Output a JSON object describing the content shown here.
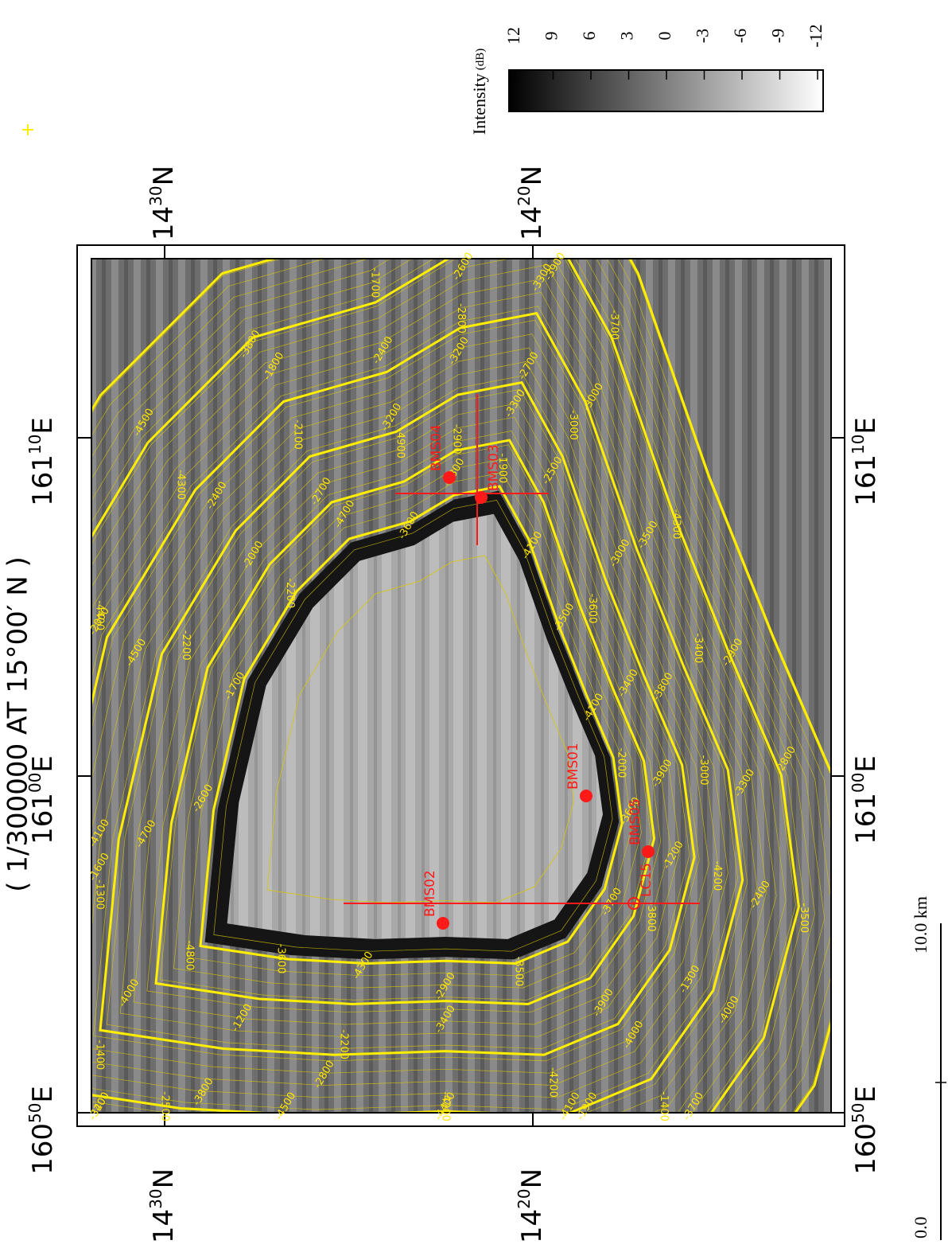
{
  "title": "( 1/300000 AT 15°00′ N )",
  "lon_labels": [
    {
      "deg": "160",
      "min": "50E"
    },
    {
      "deg": "161",
      "min": "00E"
    },
    {
      "deg": "161",
      "min": "10E"
    }
  ],
  "lat_labels": [
    {
      "deg": "14",
      "min": "30N"
    },
    {
      "deg": "14",
      "min": "20N"
    }
  ],
  "colorbar": {
    "label": "Intensity",
    "unit": "(dB)",
    "range": [
      12,
      -12
    ],
    "ticks": [
      12,
      9,
      6,
      3,
      0,
      -3,
      -6,
      -9,
      -12
    ]
  },
  "scale_bar": {
    "start": "0.0",
    "end": "10.0 km"
  },
  "stations": [
    "BMS04",
    "BMS03",
    "BMS01",
    "BMS05",
    "BMS02",
    "LC15"
  ],
  "contour_labels": [
    -4800,
    -4700,
    -4500,
    -4300,
    -3800,
    -3600,
    -2900,
    -2700,
    -3000,
    -4300,
    -4100,
    -3900,
    -4200,
    -4000,
    -3700,
    -3500,
    -3400,
    -2800,
    -2500,
    -3200,
    -2600,
    -2200,
    -2400,
    -1800,
    -1700,
    -2300,
    -3300,
    -3000,
    -3500,
    -2900,
    -2000,
    -1200,
    -1300,
    -1400,
    -1900,
    -2900,
    -2200,
    -3800,
    -3400,
    -1300,
    -1700,
    -2000,
    -2100,
    -2400,
    -2600,
    -1900,
    -2500,
    -3000,
    -3400,
    -2800,
    -3600,
    -3800,
    -4000,
    -4100,
    -4200,
    -4300,
    -1200,
    -1400,
    -1600,
    -2000,
    -2200,
    -2700,
    -3200,
    -2800,
    -3900,
    -4100,
    -3600,
    -3800,
    -3300,
    -3500,
    -3700,
    -3900,
    -4200,
    -4400,
    -4500,
    -3600,
    -4000,
    -4100,
    -4400,
    -4500,
    -4700,
    -4900,
    -3200,
    -3300,
    -3700,
    -3500,
    -3400,
    -3000,
    -2400
  ]
}
